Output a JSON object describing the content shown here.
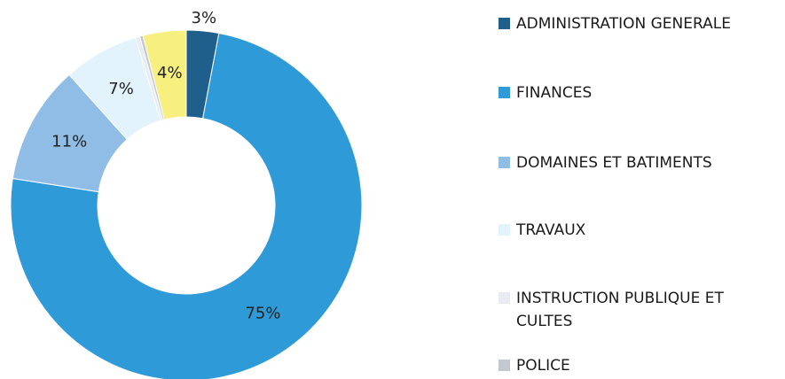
{
  "chart_data": {
    "type": "donut",
    "categories": [
      "ADMINISTRATION GENERALE",
      "FINANCES",
      "DOMAINES ET BATIMENTS",
      "TRAVAUX",
      "INSTRUCTION PUBLIQUE ET CULTES",
      "POLICE",
      null
    ],
    "values": [
      3,
      75,
      11,
      7,
      0.4,
      0.3,
      4
    ],
    "value_labels": [
      "3%",
      "75%",
      "11%",
      "7%",
      null,
      null,
      "4%"
    ],
    "colors": [
      "#1f5f8b",
      "#2e9ad8",
      "#8fbde6",
      "#e3f3fb",
      "#e8ecf2",
      "#c3c8d0",
      "#f7ef7e"
    ],
    "legend": "right"
  }
}
